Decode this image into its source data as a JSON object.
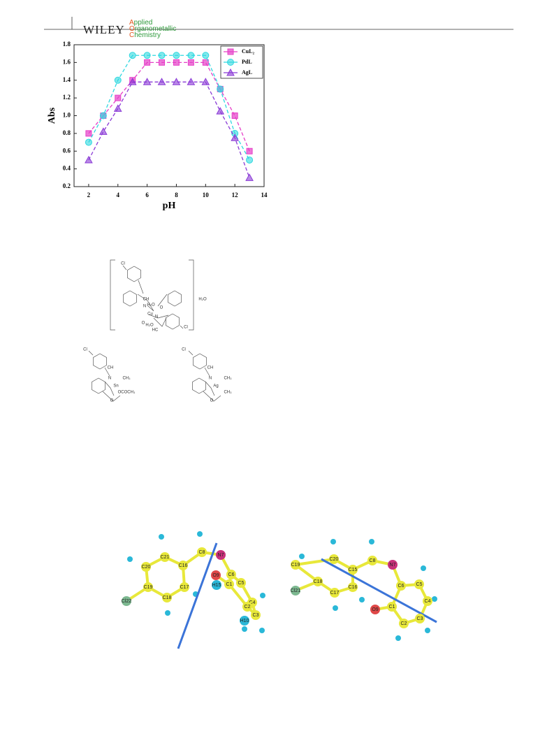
{
  "header": {
    "publisher": "WILEY",
    "journal": [
      "Applied",
      "Organometallic",
      "Chemistry"
    ]
  },
  "chart_data": {
    "type": "line",
    "xlabel": "pH",
    "ylabel": "Abs",
    "x": [
      2,
      3,
      4,
      5,
      6,
      7,
      8,
      9,
      10,
      11,
      12,
      13
    ],
    "series": [
      {
        "name": "CuL₂",
        "color": "#e63fc8",
        "marker": "square",
        "values": [
          0.8,
          1.0,
          1.2,
          1.4,
          1.6,
          1.6,
          1.6,
          1.6,
          1.6,
          1.3,
          1.0,
          0.6
        ]
      },
      {
        "name": "PdL",
        "color": "#2fd8e0",
        "marker": "circle",
        "values": [
          0.7,
          1.0,
          1.4,
          1.68,
          1.68,
          1.68,
          1.68,
          1.68,
          1.68,
          1.3,
          0.8,
          0.5
        ]
      },
      {
        "name": "AgL",
        "color": "#8a3ad6",
        "marker": "triangle",
        "values": [
          0.5,
          0.82,
          1.08,
          1.38,
          1.38,
          1.38,
          1.38,
          1.38,
          1.38,
          1.05,
          0.75,
          0.3
        ]
      }
    ],
    "xlim": [
      1,
      14
    ],
    "xticks": [
      2,
      4,
      6,
      8,
      10,
      12,
      14
    ],
    "ylim": [
      0.2,
      1.8
    ],
    "yticks": [
      0.2,
      0.4,
      0.6,
      0.8,
      {
        "value": 1,
        "label": "1.0"
      },
      1.2,
      1.4,
      1.6,
      1.8
    ],
    "grid": false,
    "legend": "upper right"
  },
  "structures": [
    {
      "labels": [
        "Cl",
        "CH",
        "N",
        "H₂O",
        "O",
        "Cu",
        "O",
        "H₂O",
        "N",
        "HC",
        "Cl",
        "H₂O"
      ]
    },
    {
      "labels": [
        "Cl",
        "CH",
        "N",
        "Sn",
        "CH₃",
        "OCOCH₃",
        "O"
      ]
    },
    {
      "labels": [
        "Cl",
        "CH",
        "N",
        "Ag",
        "CH₃",
        "CH₃",
        "O"
      ]
    }
  ],
  "molecules": [
    {
      "labels": [
        "C21",
        "C20",
        "C19",
        "C18",
        "C17",
        "C16",
        "C8",
        "N7",
        "Cl22",
        "O9",
        "H15",
        "C1",
        "C6",
        "C5",
        "C4",
        "C3",
        "C2",
        "H10"
      ]
    },
    {
      "labels": [
        "C19",
        "C20",
        "C15",
        "C8",
        "N7",
        "C6",
        "C5",
        "C4",
        "C3",
        "C2",
        "C1",
        "O9",
        "C18",
        "C17",
        "C16",
        "Cl21"
      ]
    }
  ]
}
